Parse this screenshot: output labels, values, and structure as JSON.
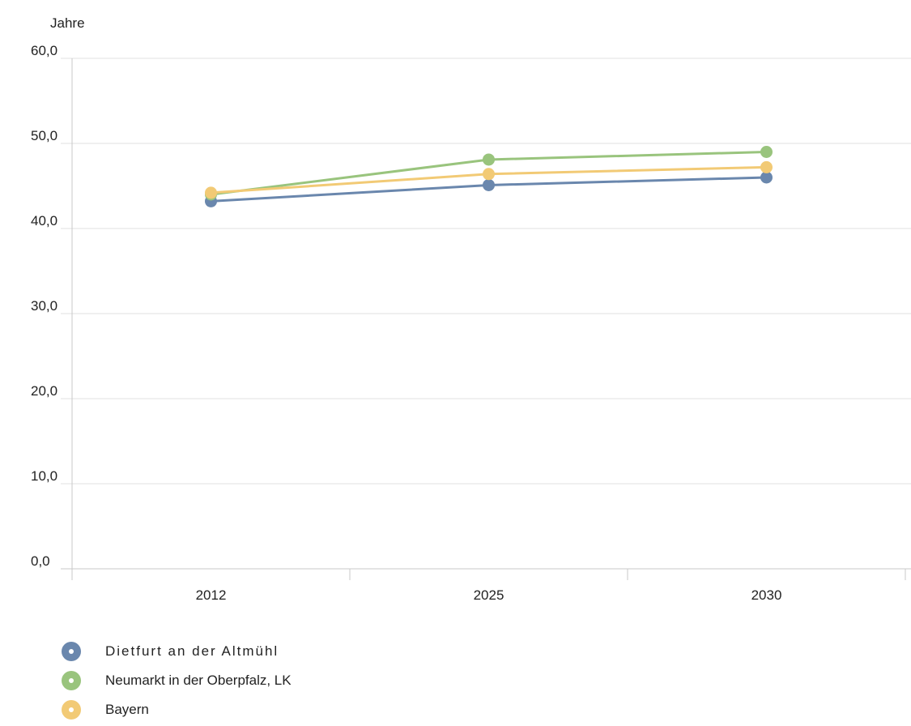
{
  "chart_data": {
    "type": "line",
    "ylabel": "Jahre",
    "categories": [
      "2012",
      "2025",
      "2030"
    ],
    "ylim": [
      0,
      60
    ],
    "yticks": [
      "0,0",
      "10,0",
      "20,0",
      "30,0",
      "40,0",
      "50,0",
      "60,0"
    ],
    "grid": true,
    "legend_position": "bottom-left",
    "series": [
      {
        "name": "Dietfurt an der Altmühl",
        "color": "#6a87ad",
        "values": [
          43.2,
          45.1,
          46.0
        ]
      },
      {
        "name": "Neumarkt in der Oberpfalz, LK",
        "color": "#99c47d",
        "values": [
          44.0,
          48.1,
          49.0
        ]
      },
      {
        "name": "Bayern",
        "color": "#f2ca75",
        "values": [
          44.2,
          46.4,
          47.2
        ]
      }
    ]
  }
}
